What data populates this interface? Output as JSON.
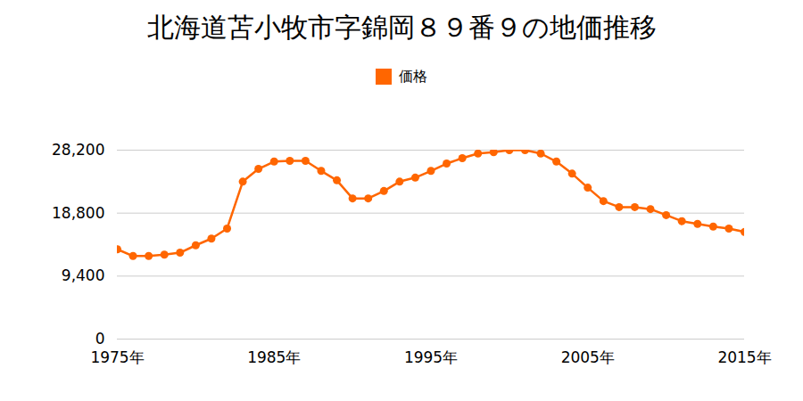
{
  "chart_data": {
    "type": "line",
    "title": "北海道苫小牧市字錦岡８９番９の地価推移",
    "x": [
      1975,
      1976,
      1977,
      1978,
      1979,
      1980,
      1981,
      1982,
      1983,
      1984,
      1985,
      1986,
      1987,
      1988,
      1989,
      1990,
      1991,
      1992,
      1993,
      1994,
      1995,
      1996,
      1997,
      1998,
      1999,
      2000,
      2001,
      2002,
      2003,
      2004,
      2005,
      2006,
      2007,
      2008,
      2009,
      2010,
      2011,
      2012,
      2013,
      2014,
      2015
    ],
    "series": [
      {
        "name": "価格",
        "color": "#ff6600",
        "marker": "circle",
        "values": [
          13400,
          12400,
          12400,
          12600,
          12900,
          14000,
          15000,
          16500,
          23500,
          25400,
          26500,
          26600,
          26600,
          25100,
          23700,
          21000,
          21000,
          22100,
          23500,
          24100,
          25100,
          26200,
          27000,
          27700,
          27900,
          28200,
          28200,
          27700,
          26500,
          24700,
          22600,
          20600,
          19700,
          19700,
          19400,
          18500,
          17600,
          17200,
          16800,
          16500,
          16000
        ]
      }
    ],
    "xlim": [
      1975,
      2015
    ],
    "xticks": [
      {
        "value": 1975,
        "label": "1975年"
      },
      {
        "value": 1985,
        "label": "1985年"
      },
      {
        "value": 1995,
        "label": "1995年"
      },
      {
        "value": 2005,
        "label": "2005年"
      },
      {
        "value": 2015,
        "label": "2015年"
      }
    ],
    "ylim": [
      0,
      28200
    ],
    "yticks": [
      0,
      {
        "value": 9400,
        "label": "9,400"
      },
      {
        "value": 18800,
        "label": "18,800"
      },
      {
        "value": 28200,
        "label": "28,200"
      }
    ],
    "grid": true,
    "legend": "top"
  }
}
